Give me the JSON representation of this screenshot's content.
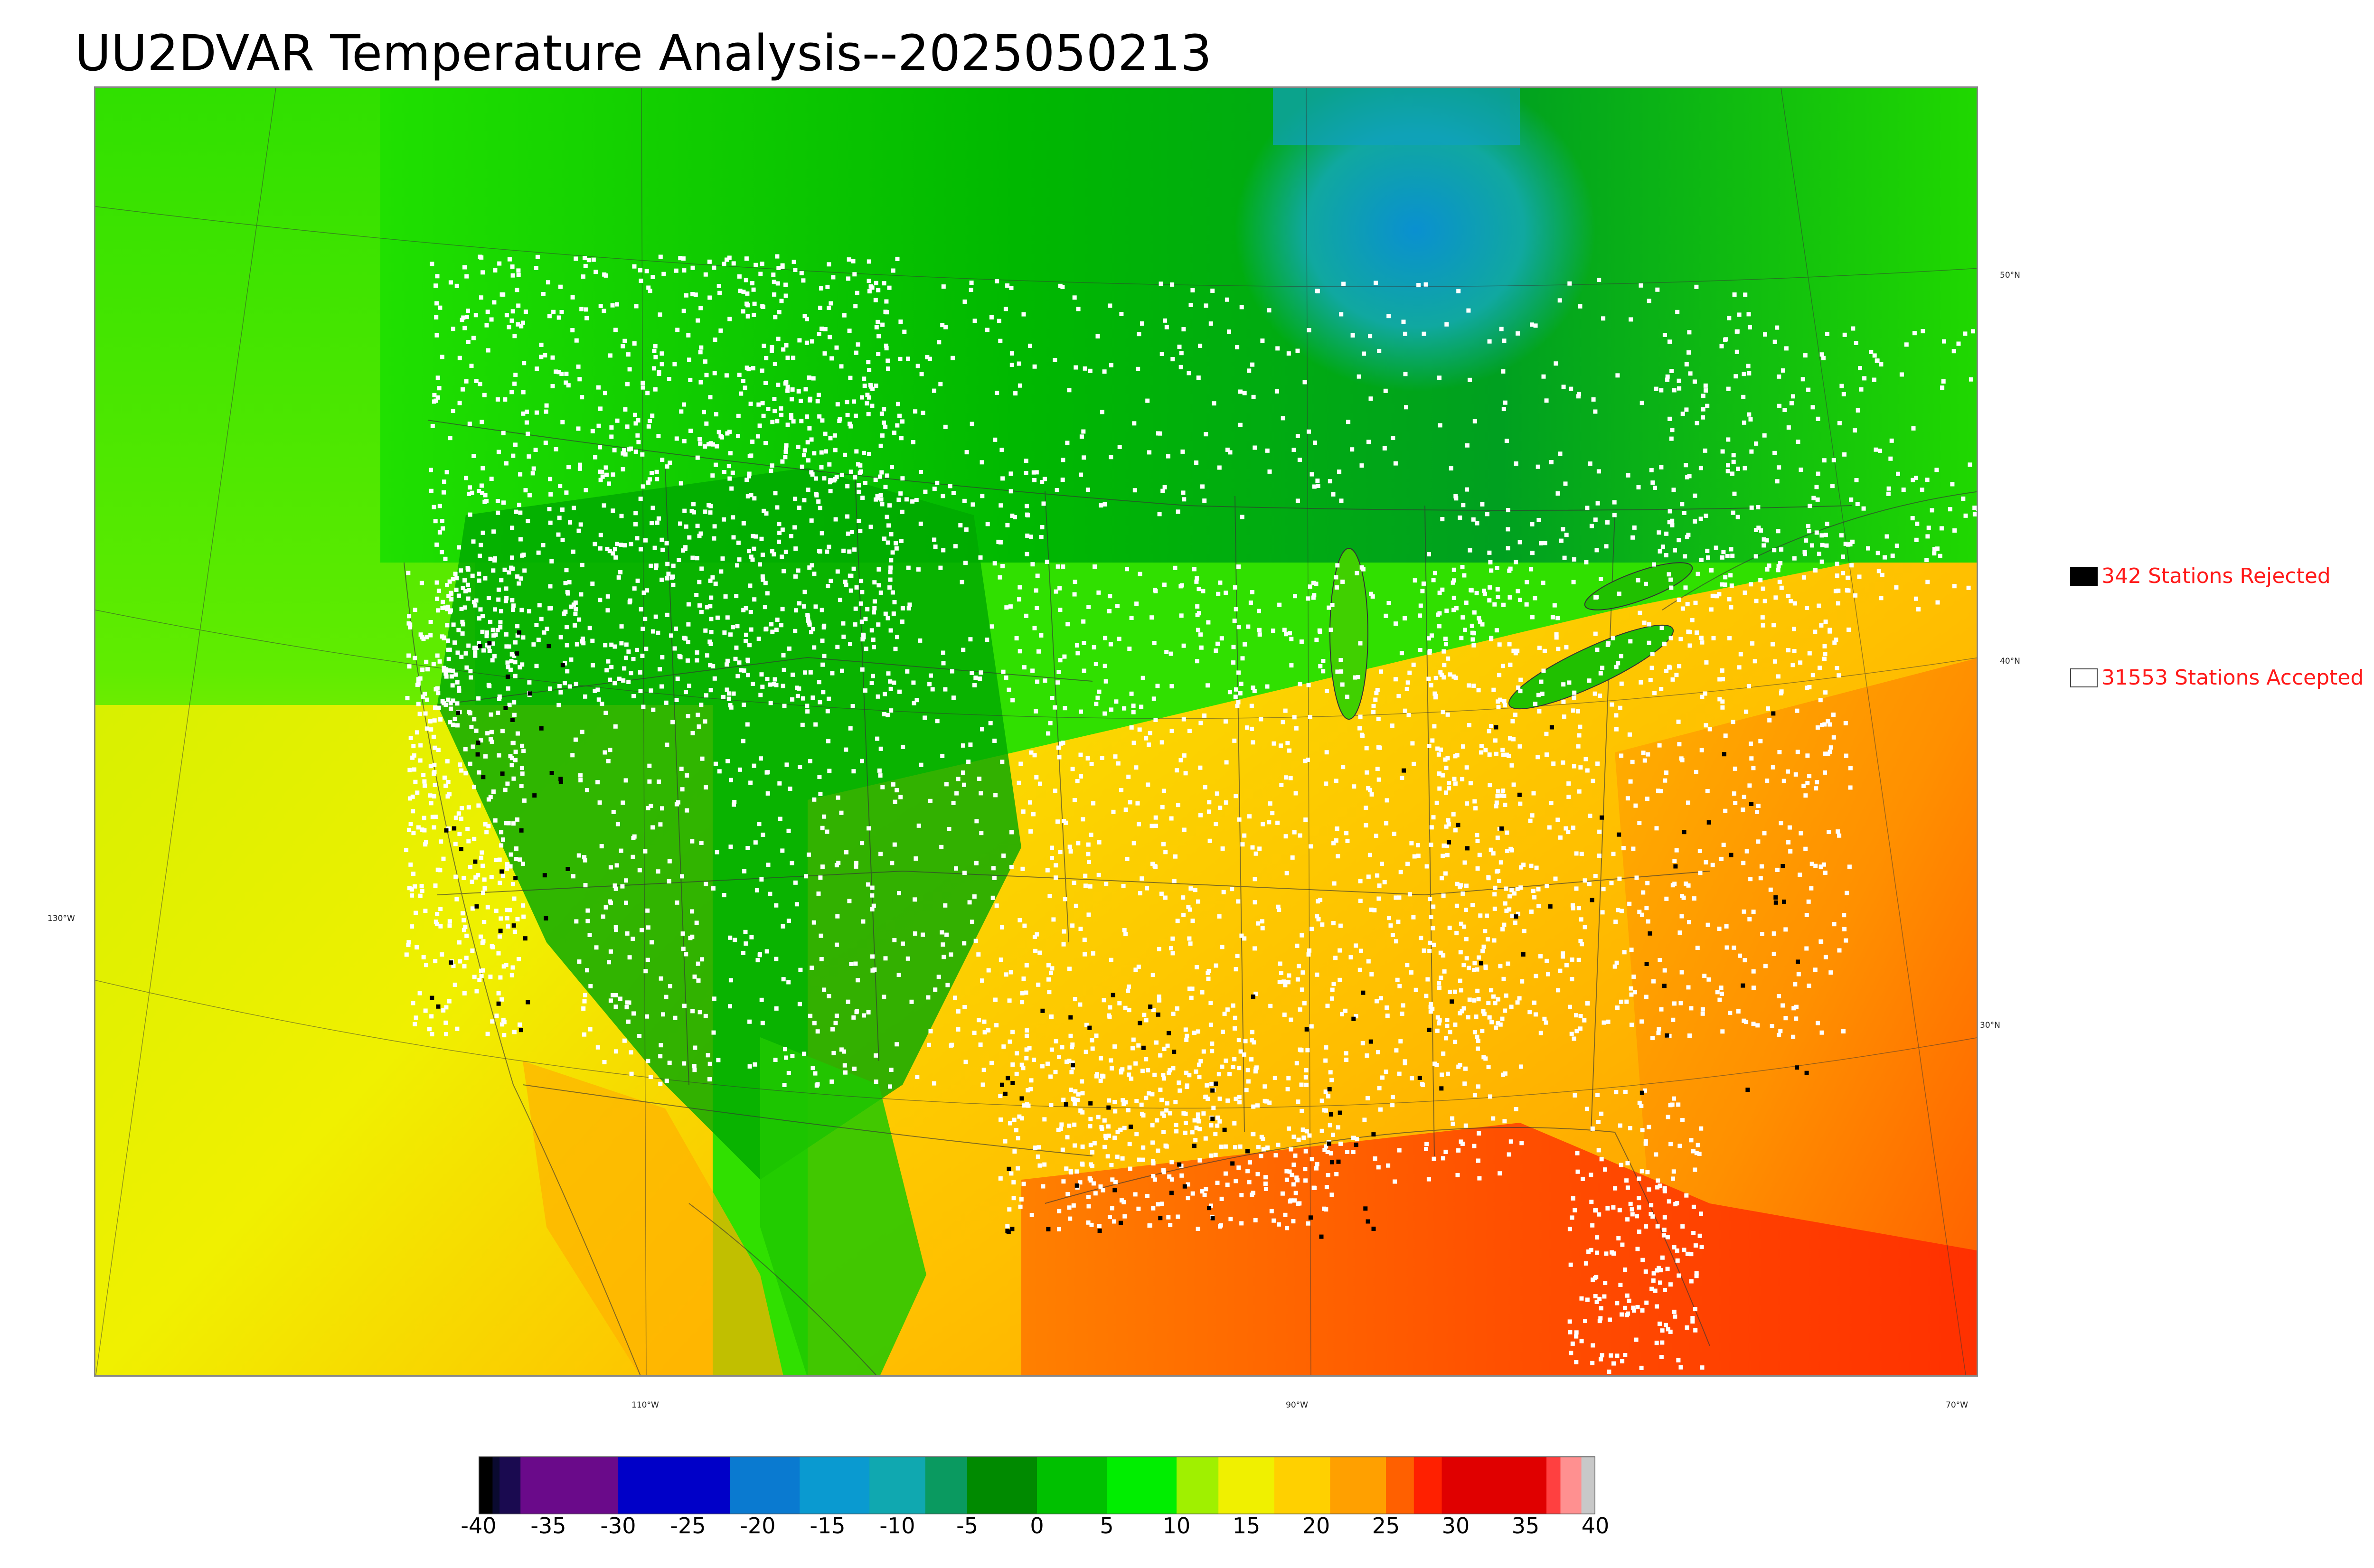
{
  "title": "UU2DVAR Temperature Analysis--2025050213",
  "legend": {
    "rejected": {
      "label": "342 Stations Rejected",
      "color": "#000000"
    },
    "accepted": {
      "label": "31553 Stations Accepted",
      "color": "#ffffff"
    }
  },
  "latitude_labels": [
    "50°N",
    "40°N",
    "30°N"
  ],
  "longitude_labels": [
    "130°W",
    "110°W",
    "90°W",
    "70°W"
  ],
  "colorbar": {
    "ticks": [
      "-40",
      "-35",
      "-30",
      "-25",
      "-20",
      "-15",
      "-10",
      "-5",
      "0",
      "5",
      "10",
      "15",
      "20",
      "25",
      "30",
      "35",
      "40"
    ],
    "range": [
      -40,
      40
    ],
    "segments": [
      {
        "from": -40,
        "to": -39,
        "color": "#000000"
      },
      {
        "from": -39,
        "to": -38.5,
        "color": "#0a0a30"
      },
      {
        "from": -38.5,
        "to": -37,
        "color": "#1a0a50"
      },
      {
        "from": -37,
        "to": -30,
        "color": "#6a0a8a"
      },
      {
        "from": -30,
        "to": -22,
        "color": "#0000c8"
      },
      {
        "from": -22,
        "to": -17,
        "color": "#0a7ad0"
      },
      {
        "from": -17,
        "to": -12,
        "color": "#0a9ad0"
      },
      {
        "from": -12,
        "to": -8,
        "color": "#10a8b0"
      },
      {
        "from": -8,
        "to": -5,
        "color": "#0a9a60"
      },
      {
        "from": -5,
        "to": 0,
        "color": "#008a00"
      },
      {
        "from": 0,
        "to": 5,
        "color": "#00c000"
      },
      {
        "from": 5,
        "to": 10,
        "color": "#00ee00"
      },
      {
        "from": 10,
        "to": 13,
        "color": "#a0f000"
      },
      {
        "from": 13,
        "to": 17,
        "color": "#f0f000"
      },
      {
        "from": 17,
        "to": 21,
        "color": "#ffd000"
      },
      {
        "from": 21,
        "to": 25,
        "color": "#ffa000"
      },
      {
        "from": 25,
        "to": 27,
        "color": "#ff6000"
      },
      {
        "from": 27,
        "to": 29,
        "color": "#ff2000"
      },
      {
        "from": 29,
        "to": 36.5,
        "color": "#e00000"
      },
      {
        "from": 36.5,
        "to": 37.5,
        "color": "#ff4040"
      },
      {
        "from": 37.5,
        "to": 39,
        "color": "#ff9090"
      },
      {
        "from": 39,
        "to": 40,
        "color": "#c8c8c8"
      }
    ]
  }
}
